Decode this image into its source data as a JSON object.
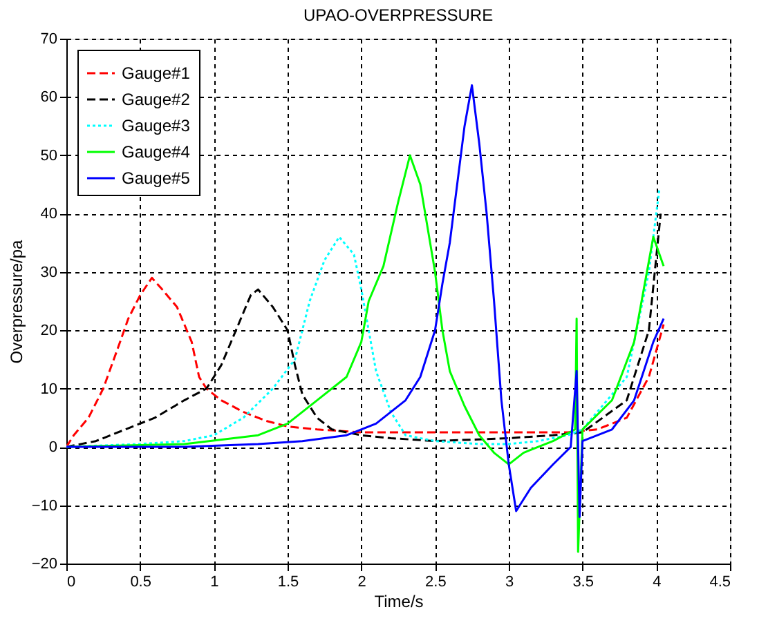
{
  "chart_data": {
    "type": "line",
    "title": "UPAO-OVERPRESSURE",
    "xlabel": "Time/s",
    "ylabel": "Overpressure/pa",
    "xlim": [
      0,
      4.5
    ],
    "xticks": [
      0,
      0.5,
      1,
      1.5,
      2,
      2.5,
      3,
      3.5,
      4,
      4.5
    ],
    "ylim": [
      -20,
      70
    ],
    "yticks": [
      -20,
      -10,
      0,
      10,
      20,
      30,
      40,
      50,
      60,
      70
    ],
    "grid": true,
    "legend": "top left",
    "marker": "none",
    "series": [
      {
        "name": "Gauge#1",
        "color": "#ff0000",
        "line_style": "dashed",
        "x": [
          0,
          0.05,
          0.15,
          0.25,
          0.35,
          0.42,
          0.5,
          0.58,
          0.65,
          0.75,
          0.85,
          0.9,
          0.95,
          1.05,
          1.2,
          1.35,
          1.5,
          1.7,
          2.0,
          2.5,
          3.0,
          3.4,
          3.6,
          3.8,
          3.95,
          4.05
        ],
        "values": [
          0,
          2,
          5,
          10,
          17,
          22,
          26,
          29,
          27,
          24,
          18,
          12,
          10,
          8,
          6,
          4.5,
          3.5,
          3,
          2.5,
          2.5,
          2.5,
          2.5,
          3,
          5,
          12,
          21
        ]
      },
      {
        "name": "Gauge#2",
        "color": "#000000",
        "line_style": "dashed",
        "x": [
          0,
          0.2,
          0.4,
          0.6,
          0.8,
          0.95,
          1.05,
          1.15,
          1.25,
          1.3,
          1.4,
          1.5,
          1.55,
          1.6,
          1.7,
          1.8,
          2.0,
          2.2,
          2.5,
          3.0,
          3.3,
          3.5,
          3.8,
          3.95,
          4.03
        ],
        "values": [
          0,
          1,
          3,
          5,
          8,
          10,
          14,
          20,
          26,
          27,
          24,
          20,
          14,
          9,
          5,
          3,
          2,
          1.5,
          1,
          1.5,
          2,
          2.5,
          8,
          20,
          40
        ]
      },
      {
        "name": "Gauge#3",
        "color": "#00ffff",
        "line_style": "dotted",
        "x": [
          0,
          0.5,
          0.8,
          1.0,
          1.2,
          1.4,
          1.55,
          1.65,
          1.75,
          1.85,
          1.95,
          2.0,
          2.05,
          2.1,
          2.2,
          2.3,
          2.5,
          2.8,
          3.0,
          3.2,
          3.4,
          3.5,
          3.8,
          3.95,
          4.02
        ],
        "values": [
          0,
          0.5,
          1,
          2,
          5,
          10,
          15,
          25,
          32,
          36,
          33,
          27,
          20,
          13,
          6,
          2,
          1,
          0.5,
          0.5,
          1,
          2,
          3,
          12,
          30,
          44
        ]
      },
      {
        "name": "Gauge#4",
        "color": "#00ff00",
        "line_style": "solid",
        "x": [
          0,
          0.8,
          1.3,
          1.5,
          1.7,
          1.9,
          2.0,
          2.05,
          2.15,
          2.25,
          2.33,
          2.4,
          2.5,
          2.55,
          2.6,
          2.7,
          2.8,
          2.9,
          3.0,
          3.1,
          3.3,
          3.45,
          3.46,
          3.47,
          3.5,
          3.7,
          3.85,
          3.98,
          4.05
        ],
        "values": [
          0,
          0.5,
          2,
          4,
          8,
          12,
          18,
          25,
          31,
          42,
          50,
          45,
          30,
          20,
          13,
          7,
          2,
          -1,
          -3,
          -1,
          1,
          3,
          22,
          -18,
          3,
          8,
          18,
          36,
          31
        ]
      },
      {
        "name": "Gauge#5",
        "color": "#0000ff",
        "line_style": "solid",
        "x": [
          0,
          0.8,
          1.3,
          1.6,
          1.9,
          2.1,
          2.3,
          2.4,
          2.5,
          2.55,
          2.6,
          2.7,
          2.75,
          2.8,
          2.85,
          2.9,
          2.95,
          3.0,
          3.05,
          3.15,
          3.3,
          3.42,
          3.46,
          3.48,
          3.5,
          3.7,
          3.85,
          3.98,
          4.05
        ],
        "values": [
          0,
          0,
          0.5,
          1,
          2,
          4,
          8,
          12,
          20,
          28,
          35,
          55,
          62,
          52,
          40,
          25,
          8,
          -3,
          -11,
          -7,
          -3,
          0,
          13,
          -12,
          1,
          3,
          8,
          18,
          22
        ]
      }
    ]
  }
}
